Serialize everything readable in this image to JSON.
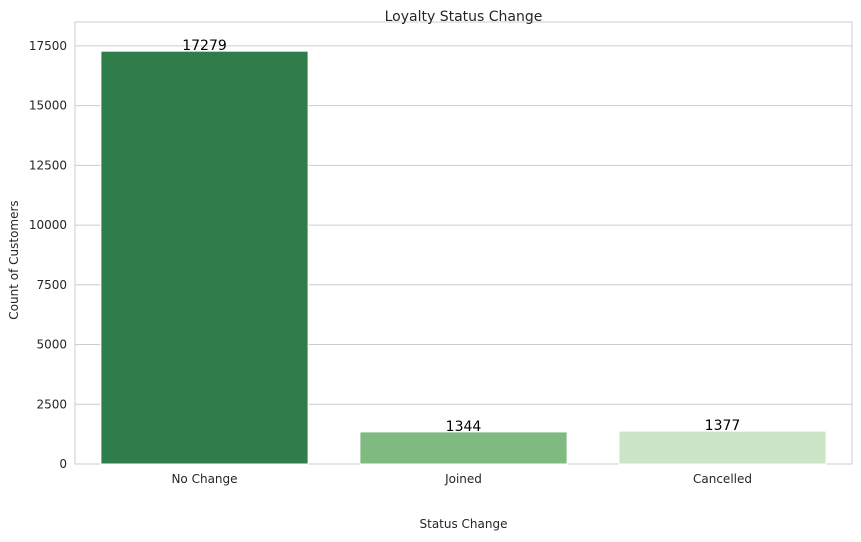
{
  "chart_data": {
    "type": "bar",
    "title": "Loyalty Status Change",
    "xlabel": "Status Change",
    "ylabel": "Count of Customers",
    "categories": [
      "No Change",
      "Joined",
      "Cancelled"
    ],
    "values": [
      17279,
      1344,
      1377
    ],
    "data_labels": [
      "17279",
      "1344",
      "1377"
    ],
    "colors": [
      "#2e7d4a",
      "#7fbb80",
      "#cce5c6"
    ],
    "ylim": [
      0,
      18500
    ],
    "yticks": [
      0,
      2500,
      5000,
      7500,
      10000,
      12500,
      15000,
      17500
    ],
    "ytick_labels": [
      "0",
      "2500",
      "5000",
      "7500",
      "10000",
      "12500",
      "15000",
      "17500"
    ],
    "grid": "horizontal",
    "legend": "none"
  }
}
